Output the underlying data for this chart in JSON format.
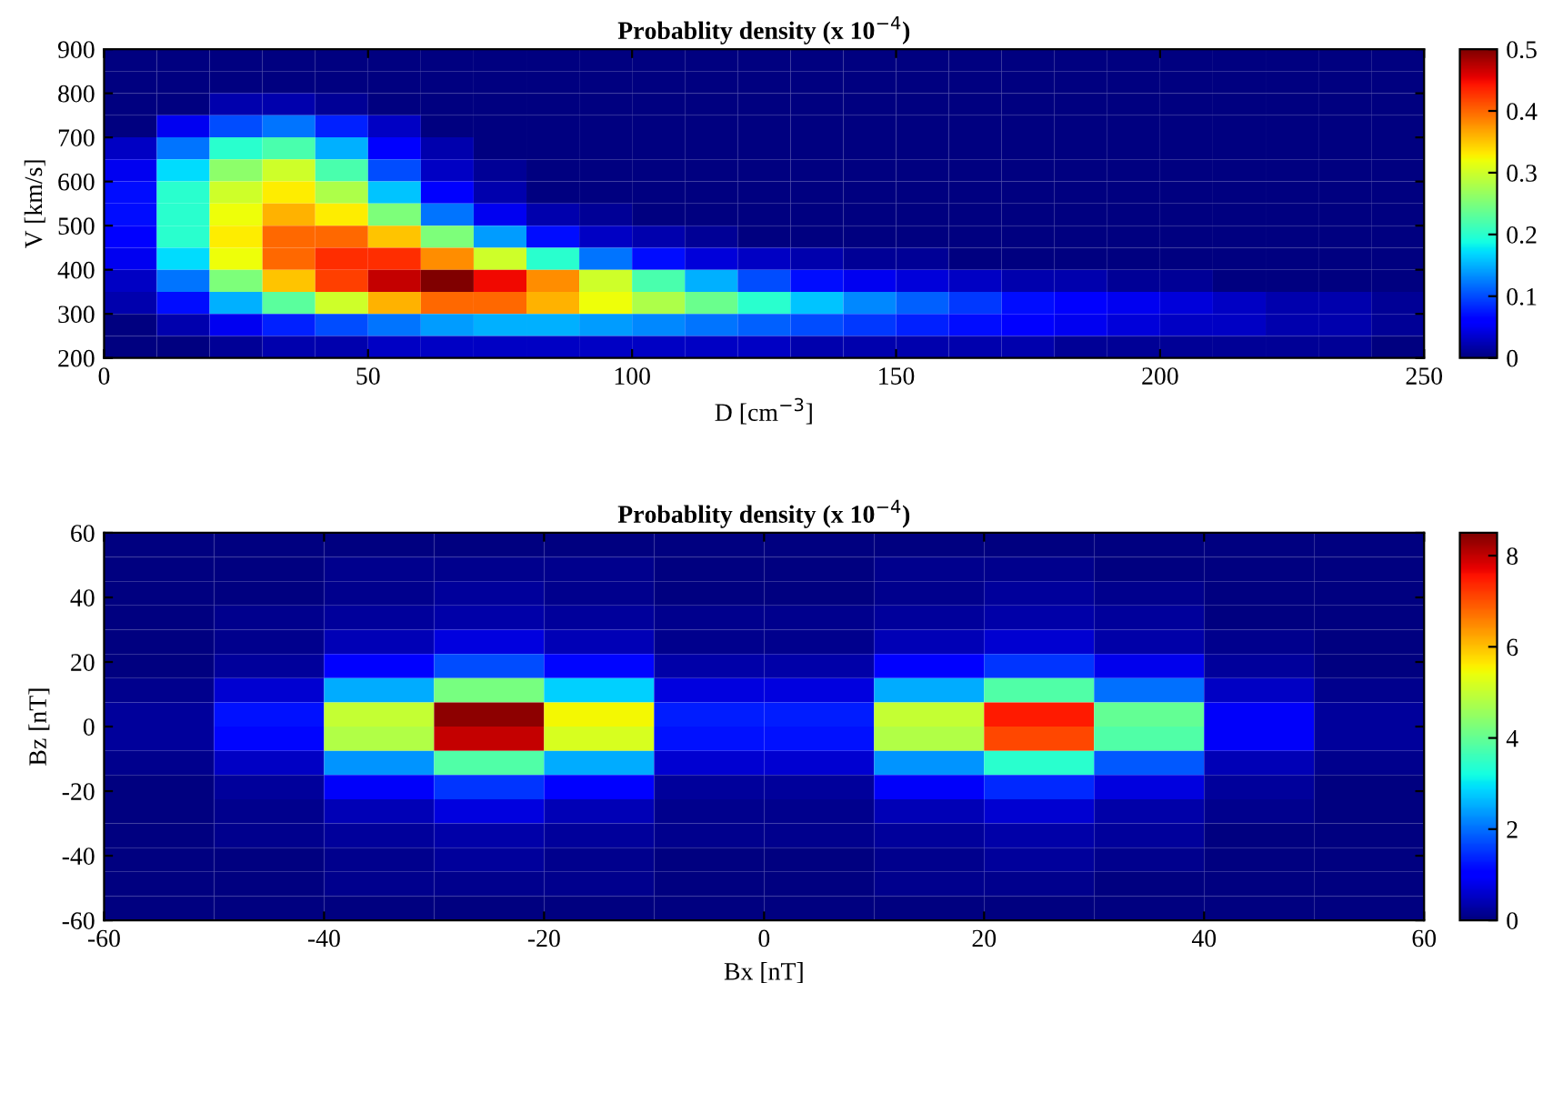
{
  "chart_data": [
    {
      "type": "heatmap",
      "title": "Probablity density (x 10$^{−4}$)",
      "xlabel": "D [cm$^{−3}$]",
      "ylabel": "V [km/s]",
      "x": [
        5,
        15,
        25,
        35,
        45,
        55,
        65,
        75,
        85,
        95,
        105,
        115,
        125,
        135,
        145,
        155,
        165,
        175,
        185,
        195,
        205,
        215,
        225,
        235,
        245
      ],
      "y": [
        875,
        825,
        775,
        725,
        675,
        625,
        575,
        525,
        475,
        425,
        375,
        325,
        275,
        225
      ],
      "xlim": [
        0,
        250
      ],
      "xticks": [
        0,
        50,
        100,
        150,
        200,
        250
      ],
      "ylim": [
        200,
        900
      ],
      "yticks": [
        200,
        300,
        400,
        500,
        600,
        700,
        800,
        900
      ],
      "clim": [
        0,
        0.5
      ],
      "cticks": [
        0,
        0.1,
        0.2,
        0.3,
        0.4,
        0.5
      ],
      "grid": false,
      "cells": [
        [
          0,
          0,
          0,
          0,
          0,
          0,
          0,
          0,
          0,
          0,
          0,
          0,
          0,
          0,
          0,
          0,
          0,
          0,
          0,
          0,
          0,
          0,
          0,
          0,
          0
        ],
        [
          0,
          0,
          0,
          0,
          0,
          0,
          0,
          0,
          0,
          0,
          0,
          0,
          0,
          0,
          0,
          0,
          0,
          0,
          0,
          0,
          0,
          0,
          0,
          0,
          0
        ],
        [
          0,
          0,
          0.02,
          0.02,
          0.01,
          0,
          0,
          0,
          0,
          0,
          0,
          0,
          0,
          0,
          0,
          0,
          0,
          0,
          0,
          0,
          0,
          0,
          0,
          0,
          0
        ],
        [
          0,
          0.05,
          0.1,
          0.12,
          0.08,
          0.03,
          0,
          0,
          0,
          0,
          0,
          0,
          0,
          0,
          0,
          0,
          0,
          0,
          0,
          0,
          0,
          0,
          0,
          0,
          0
        ],
        [
          0.03,
          0.12,
          0.2,
          0.22,
          0.15,
          0.06,
          0.02,
          0,
          0,
          0,
          0,
          0,
          0,
          0,
          0,
          0,
          0,
          0,
          0,
          0,
          0,
          0,
          0,
          0,
          0
        ],
        [
          0.05,
          0.17,
          0.26,
          0.3,
          0.22,
          0.1,
          0.03,
          0.01,
          0,
          0,
          0,
          0,
          0,
          0,
          0,
          0,
          0,
          0,
          0,
          0,
          0,
          0,
          0,
          0,
          0
        ],
        [
          0.07,
          0.2,
          0.3,
          0.33,
          0.28,
          0.16,
          0.06,
          0.02,
          0,
          0,
          0,
          0,
          0,
          0,
          0,
          0,
          0,
          0,
          0,
          0,
          0,
          0,
          0,
          0,
          0
        ],
        [
          0.07,
          0.2,
          0.32,
          0.36,
          0.33,
          0.25,
          0.12,
          0.05,
          0.02,
          0.01,
          0,
          0,
          0,
          0,
          0,
          0,
          0,
          0,
          0,
          0,
          0,
          0,
          0,
          0,
          0
        ],
        [
          0.06,
          0.2,
          0.33,
          0.4,
          0.4,
          0.35,
          0.25,
          0.14,
          0.07,
          0.03,
          0.02,
          0.01,
          0,
          0,
          0,
          0,
          0,
          0,
          0,
          0,
          0,
          0,
          0,
          0,
          0
        ],
        [
          0.05,
          0.17,
          0.32,
          0.4,
          0.43,
          0.43,
          0.38,
          0.3,
          0.2,
          0.12,
          0.07,
          0.04,
          0.03,
          0.02,
          0.01,
          0.01,
          0,
          0,
          0,
          0,
          0,
          0,
          0,
          0,
          0
        ],
        [
          0.03,
          0.12,
          0.25,
          0.35,
          0.42,
          0.47,
          0.5,
          0.45,
          0.38,
          0.3,
          0.22,
          0.15,
          0.1,
          0.07,
          0.05,
          0.04,
          0.03,
          0.02,
          0.02,
          0.01,
          0.01,
          0,
          0,
          0,
          0
        ],
        [
          0.02,
          0.07,
          0.15,
          0.23,
          0.3,
          0.36,
          0.4,
          0.4,
          0.36,
          0.32,
          0.28,
          0.24,
          0.2,
          0.16,
          0.13,
          0.11,
          0.09,
          0.07,
          0.06,
          0.05,
          0.04,
          0.03,
          0.02,
          0.02,
          0.01
        ],
        [
          0,
          0.02,
          0.05,
          0.08,
          0.1,
          0.12,
          0.14,
          0.15,
          0.15,
          0.14,
          0.13,
          0.12,
          0.11,
          0.1,
          0.09,
          0.08,
          0.07,
          0.06,
          0.05,
          0.04,
          0.03,
          0.03,
          0.02,
          0.02,
          0.01
        ],
        [
          0,
          0,
          0.01,
          0.02,
          0.02,
          0.03,
          0.03,
          0.03,
          0.03,
          0.03,
          0.03,
          0.03,
          0.03,
          0.02,
          0.02,
          0.02,
          0.02,
          0.02,
          0.01,
          0.01,
          0.01,
          0.01,
          0.01,
          0.01,
          0
        ]
      ]
    },
    {
      "type": "heatmap",
      "title": "Probablity density (x 10$^{−4}$)",
      "xlabel": "Bx [nT]",
      "ylabel": "Bz [nT]",
      "x": [
        -55,
        -45,
        -35,
        -25,
        -15,
        -5,
        5,
        15,
        25,
        35,
        45,
        55
      ],
      "y": [
        56.25,
        48.75,
        41.25,
        33.75,
        26.25,
        18.75,
        11.25,
        3.75,
        -3.75,
        -11.25,
        -18.75,
        -26.25,
        -33.75,
        -41.25,
        -48.75,
        -56.25
      ],
      "xlim": [
        -60,
        60
      ],
      "xticks": [
        -60,
        -40,
        -20,
        0,
        20,
        40,
        60
      ],
      "ylim": [
        -60,
        60
      ],
      "yticks": [
        -60,
        -40,
        -20,
        0,
        20,
        40,
        60
      ],
      "clim": [
        0,
        8.5
      ],
      "cticks": [
        0,
        2,
        4,
        6,
        8
      ],
      "grid": false,
      "cells": [
        [
          0,
          0,
          0,
          0,
          0,
          0,
          0,
          0,
          0,
          0,
          0,
          0
        ],
        [
          0,
          0,
          0.1,
          0.1,
          0.1,
          0,
          0,
          0.1,
          0.1,
          0,
          0,
          0
        ],
        [
          0,
          0,
          0.1,
          0.2,
          0.1,
          0,
          0,
          0.1,
          0.2,
          0.1,
          0,
          0
        ],
        [
          0,
          0.1,
          0.2,
          0.3,
          0.2,
          0.1,
          0.1,
          0.2,
          0.3,
          0.2,
          0,
          0
        ],
        [
          0,
          0.1,
          0.4,
          0.7,
          0.4,
          0.1,
          0.1,
          0.4,
          0.6,
          0.3,
          0.1,
          0
        ],
        [
          0,
          0.2,
          1.0,
          1.7,
          1.1,
          0.3,
          0.3,
          1.0,
          1.5,
          0.8,
          0.2,
          0
        ],
        [
          0.1,
          0.6,
          2.5,
          4.2,
          2.8,
          0.7,
          0.7,
          2.5,
          3.8,
          2.0,
          0.5,
          0.1
        ],
        [
          0.2,
          1.2,
          5.0,
          8.4,
          5.5,
          1.3,
          1.3,
          5.0,
          7.5,
          4.0,
          0.9,
          0.2
        ],
        [
          0.2,
          1.1,
          4.8,
          8.0,
          5.2,
          1.2,
          1.2,
          4.8,
          7.1,
          3.8,
          0.9,
          0.2
        ],
        [
          0.1,
          0.5,
          2.3,
          3.8,
          2.5,
          0.6,
          0.6,
          2.3,
          3.4,
          1.8,
          0.4,
          0.1
        ],
        [
          0,
          0.2,
          0.9,
          1.5,
          1.0,
          0.2,
          0.2,
          0.9,
          1.4,
          0.7,
          0.2,
          0
        ],
        [
          0,
          0.1,
          0.4,
          0.7,
          0.4,
          0.1,
          0.1,
          0.4,
          0.6,
          0.3,
          0.1,
          0
        ],
        [
          0,
          0.1,
          0.2,
          0.3,
          0.2,
          0.1,
          0.1,
          0.2,
          0.3,
          0.2,
          0,
          0
        ],
        [
          0,
          0,
          0.1,
          0.2,
          0.1,
          0,
          0,
          0.1,
          0.2,
          0.1,
          0,
          0
        ],
        [
          0,
          0,
          0.1,
          0.1,
          0.1,
          0,
          0,
          0.1,
          0.1,
          0,
          0,
          0
        ],
        [
          0,
          0,
          0,
          0,
          0,
          0,
          0,
          0,
          0,
          0,
          0,
          0
        ]
      ]
    }
  ]
}
